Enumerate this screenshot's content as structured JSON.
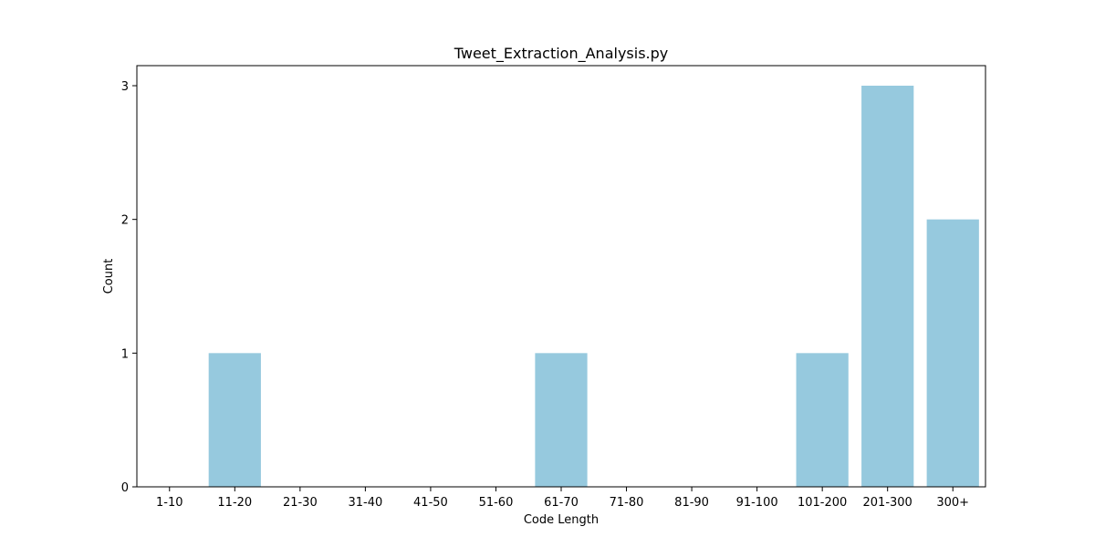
{
  "chart_data": {
    "type": "bar",
    "title": "Tweet_Extraction_Analysis.py",
    "xlabel": "Code Length",
    "ylabel": "Count",
    "categories": [
      "1-10",
      "11-20",
      "21-30",
      "31-40",
      "41-50",
      "51-60",
      "61-70",
      "71-80",
      "81-90",
      "91-100",
      "101-200",
      "201-300",
      "300+"
    ],
    "values": [
      0,
      1,
      0,
      0,
      0,
      0,
      1,
      0,
      0,
      0,
      1,
      3,
      2
    ],
    "ylim": [
      0,
      3.15
    ],
    "yticks": [
      0,
      1,
      2,
      3
    ],
    "bar_color": "#96c9de",
    "grid": false,
    "legend": false
  }
}
